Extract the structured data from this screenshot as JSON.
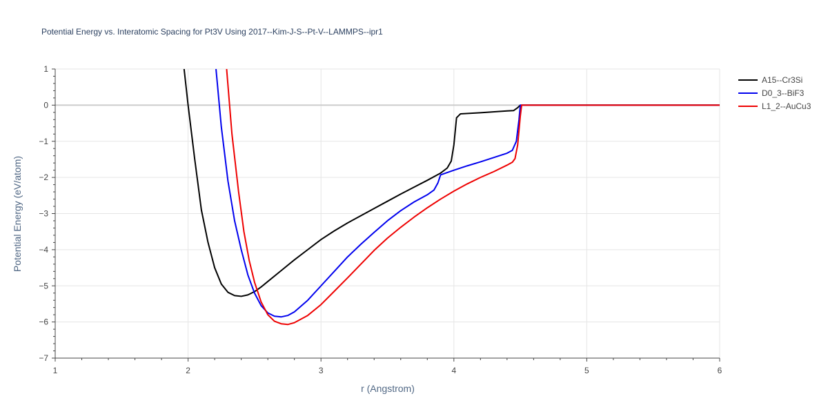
{
  "chart_data": {
    "type": "line",
    "title": "Potential Energy vs. Interatomic Spacing for Pt3V Using 2017--Kim-J-S--Pt-V--LAMMPS--ipr1",
    "xlabel": "r (Angstrom)",
    "ylabel": "Potential Energy (eV/atom)",
    "xlim": [
      1,
      6
    ],
    "ylim": [
      -7,
      1
    ],
    "x_ticks": [
      1,
      2,
      3,
      4,
      5,
      6
    ],
    "y_ticks": [
      1,
      0,
      -1,
      -2,
      -3,
      -4,
      -5,
      -6,
      -7
    ],
    "x_tick_labels": [
      "1",
      "2",
      "3",
      "4",
      "5",
      "6"
    ],
    "y_tick_labels": [
      "1",
      "0",
      "−1",
      "−2",
      "−3",
      "−4",
      "−5",
      "−6",
      "−7"
    ],
    "grid": true,
    "legend_position": "top-right",
    "series": [
      {
        "name": "A15--Cr3Si",
        "color": "#000000",
        "points": [
          [
            1.97,
            1.0
          ],
          [
            2.0,
            0.0
          ],
          [
            2.05,
            -1.5
          ],
          [
            2.1,
            -2.9
          ],
          [
            2.15,
            -3.8
          ],
          [
            2.2,
            -4.5
          ],
          [
            2.25,
            -4.95
          ],
          [
            2.3,
            -5.18
          ],
          [
            2.35,
            -5.27
          ],
          [
            2.4,
            -5.29
          ],
          [
            2.45,
            -5.25
          ],
          [
            2.5,
            -5.16
          ],
          [
            2.55,
            -5.03
          ],
          [
            2.6,
            -4.88
          ],
          [
            2.7,
            -4.58
          ],
          [
            2.8,
            -4.28
          ],
          [
            2.9,
            -4.0
          ],
          [
            3.0,
            -3.72
          ],
          [
            3.1,
            -3.48
          ],
          [
            3.2,
            -3.26
          ],
          [
            3.3,
            -3.06
          ],
          [
            3.4,
            -2.86
          ],
          [
            3.5,
            -2.66
          ],
          [
            3.6,
            -2.46
          ],
          [
            3.7,
            -2.27
          ],
          [
            3.8,
            -2.08
          ],
          [
            3.9,
            -1.88
          ],
          [
            3.95,
            -1.74
          ],
          [
            3.98,
            -1.55
          ],
          [
            4.0,
            -1.1
          ],
          [
            4.02,
            -0.35
          ],
          [
            4.05,
            -0.24
          ],
          [
            4.2,
            -0.21
          ],
          [
            4.4,
            -0.16
          ],
          [
            4.45,
            -0.15
          ],
          [
            4.48,
            -0.07
          ],
          [
            4.5,
            0.0
          ],
          [
            6.0,
            0.0
          ]
        ]
      },
      {
        "name": "D0_3--BiF3",
        "color": "#0000ee",
        "points": [
          [
            2.21,
            1.0
          ],
          [
            2.25,
            -0.6
          ],
          [
            2.3,
            -2.1
          ],
          [
            2.35,
            -3.2
          ],
          [
            2.4,
            -4.0
          ],
          [
            2.45,
            -4.7
          ],
          [
            2.5,
            -5.2
          ],
          [
            2.55,
            -5.55
          ],
          [
            2.6,
            -5.75
          ],
          [
            2.65,
            -5.84
          ],
          [
            2.7,
            -5.86
          ],
          [
            2.75,
            -5.82
          ],
          [
            2.8,
            -5.72
          ],
          [
            2.9,
            -5.4
          ],
          [
            3.0,
            -5.0
          ],
          [
            3.1,
            -4.6
          ],
          [
            3.2,
            -4.2
          ],
          [
            3.3,
            -3.85
          ],
          [
            3.4,
            -3.52
          ],
          [
            3.5,
            -3.2
          ],
          [
            3.6,
            -2.92
          ],
          [
            3.7,
            -2.68
          ],
          [
            3.8,
            -2.48
          ],
          [
            3.85,
            -2.35
          ],
          [
            3.88,
            -2.15
          ],
          [
            3.9,
            -1.93
          ],
          [
            4.0,
            -1.8
          ],
          [
            4.1,
            -1.68
          ],
          [
            4.2,
            -1.57
          ],
          [
            4.3,
            -1.45
          ],
          [
            4.4,
            -1.33
          ],
          [
            4.44,
            -1.25
          ],
          [
            4.47,
            -1.0
          ],
          [
            4.49,
            -0.4
          ],
          [
            4.5,
            0.0
          ],
          [
            6.0,
            0.0
          ]
        ]
      },
      {
        "name": "L1_2--AuCu3",
        "color": "#ee0000",
        "points": [
          [
            2.29,
            1.0
          ],
          [
            2.33,
            -0.8
          ],
          [
            2.38,
            -2.4
          ],
          [
            2.42,
            -3.5
          ],
          [
            2.46,
            -4.3
          ],
          [
            2.5,
            -4.9
          ],
          [
            2.55,
            -5.45
          ],
          [
            2.6,
            -5.8
          ],
          [
            2.65,
            -5.98
          ],
          [
            2.7,
            -6.05
          ],
          [
            2.75,
            -6.07
          ],
          [
            2.8,
            -6.02
          ],
          [
            2.9,
            -5.82
          ],
          [
            3.0,
            -5.52
          ],
          [
            3.1,
            -5.15
          ],
          [
            3.2,
            -4.78
          ],
          [
            3.3,
            -4.4
          ],
          [
            3.4,
            -4.02
          ],
          [
            3.5,
            -3.68
          ],
          [
            3.6,
            -3.38
          ],
          [
            3.7,
            -3.1
          ],
          [
            3.8,
            -2.84
          ],
          [
            3.9,
            -2.6
          ],
          [
            4.0,
            -2.38
          ],
          [
            4.1,
            -2.18
          ],
          [
            4.2,
            -2.0
          ],
          [
            4.3,
            -1.84
          ],
          [
            4.4,
            -1.66
          ],
          [
            4.44,
            -1.58
          ],
          [
            4.46,
            -1.48
          ],
          [
            4.48,
            -1.1
          ],
          [
            4.5,
            -0.3
          ],
          [
            4.51,
            0.0
          ],
          [
            6.0,
            0.0
          ]
        ]
      }
    ]
  }
}
